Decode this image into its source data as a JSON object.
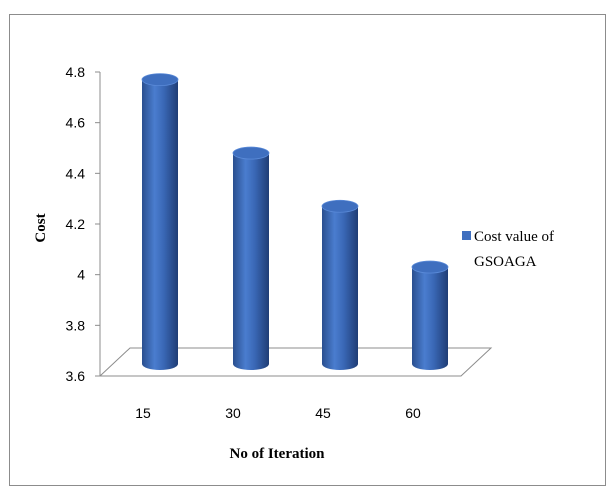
{
  "chart_data": {
    "type": "bar",
    "style": "3d-cylinder",
    "categories": [
      "15",
      "30",
      "45",
      "60"
    ],
    "series": [
      {
        "name": "Cost value of GSOAGA",
        "values": [
          4.77,
          4.48,
          4.27,
          4.03
        ],
        "color": "#3f6fbf"
      }
    ],
    "title": "",
    "xlabel": "No of Iteration",
    "ylabel": "Cost",
    "ylim": [
      3.6,
      4.8
    ],
    "yticks": [
      "3.6",
      "3.8",
      "4",
      "4.2",
      "4.4",
      "4.6",
      "4.8"
    ],
    "grid": false,
    "legend_position": "right",
    "legend_lines": [
      "Cost value of",
      "GSOAGA"
    ]
  }
}
